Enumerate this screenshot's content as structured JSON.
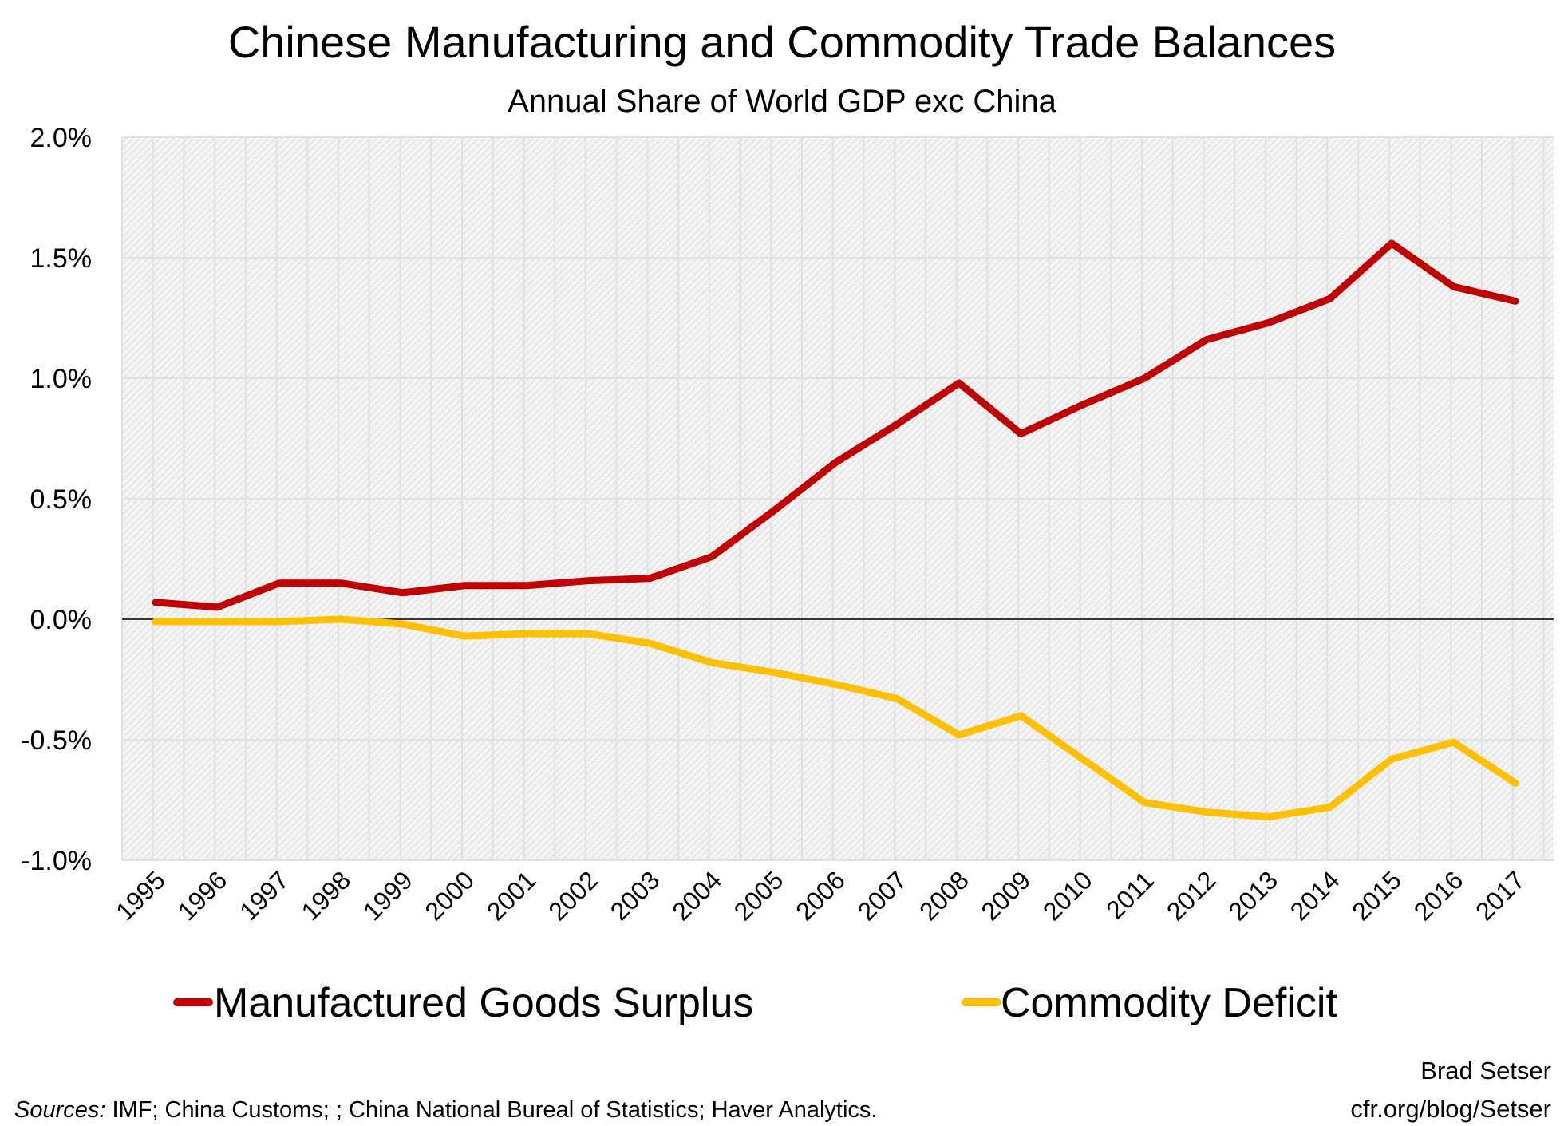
{
  "chart_data": {
    "type": "line",
    "title": "Chinese Manufacturing and Commodity Trade Balances",
    "subtitle": "Annual Share of World GDP exc China",
    "xlabel": "",
    "ylabel": "",
    "ylim": [
      -1.0,
      2.0
    ],
    "yticks": [
      2.0,
      1.5,
      1.0,
      0.5,
      0.0,
      -0.5,
      -1.0
    ],
    "ytick_labels": [
      "2.0%",
      "1.5%",
      "1.0%",
      "0.5%",
      "0.0%",
      "-0.5%",
      "-1.0%"
    ],
    "grid": true,
    "legend_position": "bottom",
    "categories": [
      "1995",
      "1996",
      "1997",
      "1998",
      "1999",
      "2000",
      "2001",
      "2002",
      "2003",
      "2004",
      "2005",
      "2006",
      "2007",
      "2008",
      "2009",
      "2010",
      "2011",
      "2012",
      "2013",
      "2014",
      "2015",
      "2016",
      "2017"
    ],
    "series": [
      {
        "name": "Manufactured Goods Surplus",
        "color": "#c00000",
        "values": [
          0.07,
          0.05,
          0.15,
          0.15,
          0.11,
          0.14,
          0.14,
          0.16,
          0.17,
          0.26,
          0.45,
          0.65,
          0.81,
          0.98,
          0.77,
          0.89,
          1.0,
          1.16,
          1.23,
          1.33,
          1.56,
          1.38,
          1.32
        ]
      },
      {
        "name": "Commodity Deficit",
        "color": "#ffc000",
        "values": [
          -0.01,
          -0.01,
          -0.01,
          0.0,
          -0.02,
          -0.07,
          -0.06,
          -0.06,
          -0.1,
          -0.18,
          -0.22,
          -0.27,
          -0.33,
          -0.48,
          -0.4,
          -0.58,
          -0.76,
          -0.8,
          -0.82,
          -0.78,
          -0.58,
          -0.51,
          -0.68
        ]
      }
    ]
  },
  "footer": {
    "sources_label": "Sources:",
    "sources_text": " IMF; China Customs; ; China National Bureal of Statistics; Haver Analytics.",
    "author": "Brad Setser",
    "url": "cfr.org/blog/Setser"
  }
}
